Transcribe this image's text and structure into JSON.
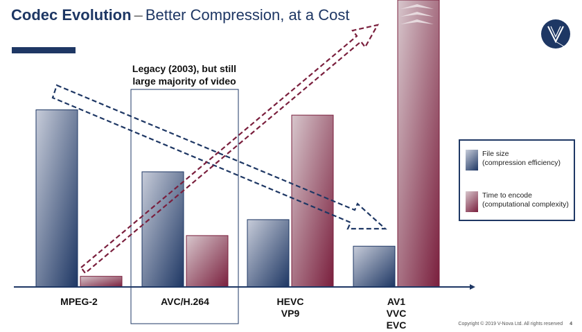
{
  "title": {
    "main": "Codec Evolution",
    "separator": "–",
    "subtitle": "Better Compression, at a Cost"
  },
  "logo": {
    "icon": "v-nova-logo-icon",
    "color": "#1e3764"
  },
  "annotation": {
    "lines": [
      "Legacy (2003), but still",
      "large majority of video"
    ]
  },
  "legend": {
    "file_size_label": [
      "File size",
      "(compression efficiency)"
    ],
    "time_label": [
      "Time to encode",
      "(computational complexity)"
    ]
  },
  "footer": {
    "copyright": "Copyright © 2019 V-Nova Ltd. All rights reserved",
    "page_number": "4"
  },
  "colors": {
    "navy": "#1e3764",
    "maroon": "#7a1f3d",
    "file_size_light": "#c7ccd9",
    "time_light": "#d7c6cc"
  },
  "chart_data": {
    "type": "bar",
    "categories": [
      [
        "MPEG-2"
      ],
      [
        "AVC/H.264"
      ],
      [
        "HEVC",
        "VP9"
      ],
      [
        "AV1",
        "VVC",
        "EVC"
      ]
    ],
    "series": [
      {
        "name": "File size (compression efficiency)",
        "values": [
          100,
          65,
          38,
          23
        ]
      },
      {
        "name": "Time to encode (computational complexity)",
        "values": [
          6,
          29,
          97,
          162
        ]
      }
    ],
    "ylim": [
      0,
      162
    ],
    "grid": false,
    "legend_position": "right",
    "xlabel": "",
    "ylabel": ""
  }
}
